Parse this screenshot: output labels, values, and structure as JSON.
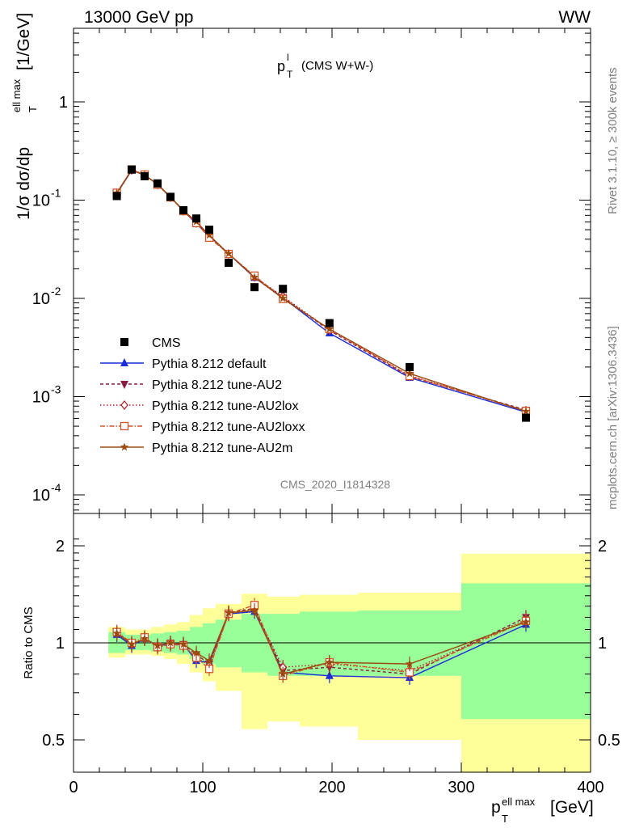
{
  "header": {
    "left": "13000 GeV pp",
    "right": "WW",
    "title_main": "p",
    "title_sup": "l",
    "title_sub": "T",
    "title_rest": "(CMS W+W-)",
    "ref": "CMS_2020_I1814328",
    "side_top": "Rivet 3.1.10, ≥ 300k events",
    "side_bottom": "mcplots.cern.ch [arXiv:1306.3436]"
  },
  "axes": {
    "ylabel_main": "1/σ dσ/dp",
    "ylabel_main_sup": "ell max",
    "ylabel_main_sub": "T",
    "ylabel_main_unit": "[1/GeV]",
    "ylabel_ratio": "Ratio to CMS",
    "xlabel": "p",
    "xlabel_sup": "ell max",
    "xlabel_sub": "T",
    "xlabel_unit": "[GeV]",
    "xticks": [
      "0",
      "100",
      "200",
      "300",
      "400"
    ],
    "yticks_main": [
      {
        "base": "1",
        "exp": ""
      },
      {
        "base": "10",
        "exp": "-1"
      },
      {
        "base": "10",
        "exp": "-2"
      },
      {
        "base": "10",
        "exp": "-3"
      },
      {
        "base": "10",
        "exp": "-4"
      }
    ],
    "yticks_ratio": [
      "0.5",
      "1",
      "2"
    ]
  },
  "chart_data": {
    "type": "line",
    "xlim": [
      0,
      400
    ],
    "ylim_main": [
      5e-05,
      5
    ],
    "yscale_main": "log",
    "ylim_ratio": [
      0.5,
      2
    ],
    "yscale_ratio": "log",
    "bins": [
      [
        27,
        40
      ],
      [
        40,
        50
      ],
      [
        50,
        60
      ],
      [
        60,
        70
      ],
      [
        70,
        80
      ],
      [
        80,
        90
      ],
      [
        90,
        100
      ],
      [
        100,
        110
      ],
      [
        110,
        130
      ],
      [
        130,
        150
      ],
      [
        150,
        175
      ],
      [
        175,
        220
      ],
      [
        220,
        300
      ],
      [
        300,
        400
      ]
    ],
    "x": [
      33.5,
      45,
      55,
      65,
      75,
      85,
      95,
      105,
      120,
      140,
      162,
      198,
      260,
      350
    ],
    "data": {
      "name": "CMS",
      "values": [
        0.11,
        0.205,
        0.175,
        0.148,
        0.108,
        0.079,
        0.065,
        0.05,
        0.023,
        0.013,
        0.0125,
        0.0056,
        0.002,
        0.00061
      ],
      "color": "#000000"
    },
    "band_green": [
      [
        0.93,
        1.08
      ],
      [
        0.95,
        1.06
      ],
      [
        0.95,
        1.06
      ],
      [
        0.94,
        1.07
      ],
      [
        0.93,
        1.08
      ],
      [
        0.92,
        1.09
      ],
      [
        0.89,
        1.12
      ],
      [
        0.86,
        1.15
      ],
      [
        0.84,
        1.18
      ],
      [
        0.81,
        1.23
      ],
      [
        0.79,
        1.23
      ],
      [
        0.79,
        1.25
      ],
      [
        0.79,
        1.26
      ],
      [
        0.58,
        1.53
      ]
    ],
    "band_yellow": [
      [
        0.9,
        1.12
      ],
      [
        0.92,
        1.1
      ],
      [
        0.92,
        1.1
      ],
      [
        0.91,
        1.12
      ],
      [
        0.89,
        1.14
      ],
      [
        0.86,
        1.16
      ],
      [
        0.81,
        1.22
      ],
      [
        0.76,
        1.28
      ],
      [
        0.71,
        1.32
      ],
      [
        0.54,
        1.42
      ],
      [
        0.57,
        1.39
      ],
      [
        0.55,
        1.41
      ],
      [
        0.5,
        1.43
      ],
      [
        0.35,
        1.89
      ]
    ],
    "series": [
      {
        "name": "Pythia 8.212 default",
        "color": "#1c2ed6",
        "dash": "",
        "marker": "triangle-up",
        "ratio": [
          1.06,
          0.98,
          1.03,
          0.98,
          0.99,
          0.99,
          0.88,
          0.87,
          1.23,
          1.25,
          0.81,
          0.79,
          0.78,
          1.14
        ]
      },
      {
        "name": "Pythia 8.212 tune-AU2",
        "color": "#8c1c46",
        "dash": "4,3",
        "marker": "triangle-down",
        "ratio": [
          1.08,
          0.99,
          1.03,
          0.98,
          1.0,
          0.99,
          0.92,
          0.86,
          1.24,
          1.28,
          0.82,
          0.84,
          0.8,
          1.2
        ]
      },
      {
        "name": "Pythia 8.212 tune-AU2lox",
        "color": "#b8232e",
        "dash": "1.5,2.5",
        "marker": "diamond-open",
        "ratio": [
          1.07,
          0.99,
          1.03,
          0.97,
          0.99,
          0.98,
          0.9,
          0.85,
          1.23,
          1.27,
          0.84,
          0.86,
          0.82,
          1.18
        ]
      },
      {
        "name": "Pythia 8.212 tune-AU2loxx",
        "color": "#d2562a",
        "dash": "6,2,1.5,2",
        "marker": "square-open",
        "ratio": [
          1.08,
          1.0,
          1.04,
          0.97,
          0.99,
          0.98,
          0.9,
          0.83,
          1.23,
          1.31,
          0.79,
          0.87,
          0.81,
          1.17
        ]
      },
      {
        "name": "Pythia 8.212 tune-AU2m",
        "color": "#9a4a0e",
        "dash": "",
        "marker": "star",
        "ratio": [
          1.07,
          0.99,
          1.03,
          0.98,
          1.0,
          0.99,
          0.93,
          0.88,
          1.24,
          1.26,
          0.8,
          0.87,
          0.86,
          1.16
        ]
      }
    ],
    "legend_position": "lower-left"
  }
}
